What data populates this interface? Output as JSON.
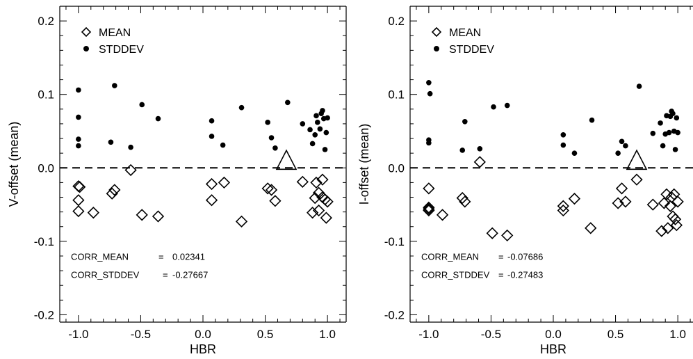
{
  "chart_data": [
    {
      "type": "scatter",
      "xlabel": "HBR",
      "ylabel": "V-offset (mean)",
      "xlim": [
        -1.15,
        1.15
      ],
      "ylim": [
        -0.21,
        0.22
      ],
      "xticks": [
        "-1.0",
        "-0.5",
        "0.0",
        "0.5",
        "1.0"
      ],
      "xtick_values": [
        -1.0,
        -0.5,
        0.0,
        0.5,
        1.0
      ],
      "yticks": [
        "-0.2",
        "-0.1",
        "0.0",
        "0.1",
        "0.2"
      ],
      "ytick_values": [
        -0.2,
        -0.1,
        0.0,
        0.1,
        0.2
      ],
      "legend": [
        {
          "label": "MEAN",
          "marker": "open-diamond"
        },
        {
          "label": "STDDEV",
          "marker": "filled-circle"
        }
      ],
      "legend_position": "top-left",
      "reference_line": {
        "y": 0.0,
        "style": "dashed"
      },
      "annotations": [
        {
          "label": "CORR_MEAN",
          "equals": "=",
          "value": "0.02341"
        },
        {
          "label": "CORR_STDDEV",
          "equals": "=",
          "value": "-0.27667"
        }
      ],
      "triangle_marker": {
        "x": 0.67,
        "y": 0.0
      },
      "series": [
        {
          "name": "MEAN",
          "marker": "open-diamond",
          "points": [
            [
              -1.0,
              -0.025
            ],
            [
              -0.99,
              -0.026
            ],
            [
              -1.0,
              -0.044
            ],
            [
              -1.0,
              -0.059
            ],
            [
              -0.88,
              -0.061
            ],
            [
              -0.73,
              -0.035
            ],
            [
              -0.71,
              -0.03
            ],
            [
              -0.58,
              -0.003
            ],
            [
              -0.49,
              -0.064
            ],
            [
              -0.36,
              -0.066
            ],
            [
              0.07,
              -0.022
            ],
            [
              0.07,
              -0.044
            ],
            [
              0.17,
              -0.02
            ],
            [
              0.31,
              -0.073
            ],
            [
              0.52,
              -0.028
            ],
            [
              0.55,
              -0.03
            ],
            [
              0.58,
              -0.045
            ],
            [
              0.8,
              -0.019
            ],
            [
              0.88,
              -0.061
            ],
            [
              0.9,
              -0.041
            ],
            [
              0.91,
              -0.02
            ],
            [
              0.93,
              -0.058
            ],
            [
              0.93,
              -0.034
            ],
            [
              0.96,
              -0.016
            ],
            [
              0.96,
              -0.04
            ],
            [
              0.98,
              -0.043
            ],
            [
              0.99,
              -0.068
            ],
            [
              1.0,
              -0.046
            ]
          ]
        },
        {
          "name": "STDDEV",
          "marker": "filled-circle",
          "points": [
            [
              -1.0,
              0.106
            ],
            [
              -1.0,
              0.069
            ],
            [
              -1.0,
              0.039
            ],
            [
              -1.0,
              0.03
            ],
            [
              -0.74,
              0.035
            ],
            [
              -0.71,
              0.112
            ],
            [
              -0.58,
              0.028
            ],
            [
              -0.49,
              0.086
            ],
            [
              -0.36,
              0.067
            ],
            [
              0.07,
              0.064
            ],
            [
              0.07,
              0.043
            ],
            [
              0.16,
              0.031
            ],
            [
              0.31,
              0.082
            ],
            [
              0.52,
              0.062
            ],
            [
              0.55,
              0.041
            ],
            [
              0.58,
              0.027
            ],
            [
              0.68,
              0.089
            ],
            [
              0.8,
              0.06
            ],
            [
              0.86,
              0.052
            ],
            [
              0.88,
              0.033
            ],
            [
              0.9,
              0.045
            ],
            [
              0.91,
              0.071
            ],
            [
              0.92,
              0.062
            ],
            [
              0.94,
              0.053
            ],
            [
              0.95,
              0.074
            ],
            [
              0.96,
              0.078
            ],
            [
              0.97,
              0.067
            ],
            [
              0.98,
              0.025
            ],
            [
              0.99,
              0.048
            ],
            [
              1.0,
              0.068
            ]
          ]
        }
      ]
    },
    {
      "type": "scatter",
      "xlabel": "HBR",
      "ylabel": "I-offset (mean)",
      "xlim": [
        -1.15,
        1.15
      ],
      "ylim": [
        -0.21,
        0.22
      ],
      "xticks": [
        "-1.0",
        "-0.5",
        "0.0",
        "0.5",
        "1.0"
      ],
      "xtick_values": [
        -1.0,
        -0.5,
        0.0,
        0.5,
        1.0
      ],
      "yticks": [
        "-0.2",
        "-0.1",
        "0.0",
        "0.1",
        "0.2"
      ],
      "ytick_values": [
        -0.2,
        -0.1,
        0.0,
        0.1,
        0.2
      ],
      "legend": [
        {
          "label": "MEAN",
          "marker": "open-diamond"
        },
        {
          "label": "STDDEV",
          "marker": "filled-circle"
        }
      ],
      "legend_position": "top-left",
      "reference_line": {
        "y": 0.0,
        "style": "dashed"
      },
      "annotations": [
        {
          "label": "CORR_MEAN",
          "equals": "=",
          "value": "-0.07686"
        },
        {
          "label": "CORR_STDDEV",
          "equals": "=",
          "value": "-0.27483"
        }
      ],
      "triangle_marker": {
        "x": 0.67,
        "y": 0.0
      },
      "series": [
        {
          "name": "MEAN",
          "marker": "open-diamond",
          "points": [
            [
              -1.0,
              -0.028
            ],
            [
              -1.0,
              -0.054
            ],
            [
              -1.0,
              -0.056
            ],
            [
              -1.0,
              -0.058
            ],
            [
              -0.89,
              -0.064
            ],
            [
              -0.73,
              -0.041
            ],
            [
              -0.71,
              -0.046
            ],
            [
              -0.59,
              0.008
            ],
            [
              -0.49,
              -0.089
            ],
            [
              -0.37,
              -0.092
            ],
            [
              0.08,
              -0.052
            ],
            [
              0.08,
              -0.058
            ],
            [
              0.17,
              -0.042
            ],
            [
              0.3,
              -0.082
            ],
            [
              0.52,
              -0.048
            ],
            [
              0.55,
              -0.028
            ],
            [
              0.58,
              -0.046
            ],
            [
              0.67,
              -0.016
            ],
            [
              0.8,
              -0.05
            ],
            [
              0.87,
              -0.086
            ],
            [
              0.89,
              -0.048
            ],
            [
              0.91,
              -0.036
            ],
            [
              0.92,
              -0.082
            ],
            [
              0.94,
              -0.052
            ],
            [
              0.95,
              -0.04
            ],
            [
              0.96,
              -0.066
            ],
            [
              0.97,
              -0.036
            ],
            [
              0.98,
              -0.07
            ],
            [
              0.99,
              -0.078
            ],
            [
              1.0,
              -0.046
            ]
          ]
        },
        {
          "name": "STDDEV",
          "marker": "filled-circle",
          "points": [
            [
              -1.0,
              0.116
            ],
            [
              -0.99,
              0.101
            ],
            [
              -1.0,
              0.038
            ],
            [
              -1.0,
              0.034
            ],
            [
              -0.73,
              0.024
            ],
            [
              -0.71,
              0.063
            ],
            [
              -0.59,
              0.026
            ],
            [
              -0.48,
              0.083
            ],
            [
              -0.37,
              0.085
            ],
            [
              0.08,
              0.045
            ],
            [
              0.08,
              0.031
            ],
            [
              0.17,
              0.02
            ],
            [
              0.31,
              0.065
            ],
            [
              0.52,
              0.02
            ],
            [
              0.55,
              0.036
            ],
            [
              0.58,
              0.03
            ],
            [
              0.69,
              0.111
            ],
            [
              0.8,
              0.047
            ],
            [
              0.86,
              0.061
            ],
            [
              0.88,
              0.03
            ],
            [
              0.9,
              0.046
            ],
            [
              0.91,
              0.071
            ],
            [
              0.93,
              0.048
            ],
            [
              0.94,
              0.07
            ],
            [
              0.95,
              0.077
            ],
            [
              0.96,
              0.074
            ],
            [
              0.97,
              0.05
            ],
            [
              0.98,
              0.025
            ],
            [
              0.99,
              0.068
            ],
            [
              1.0,
              0.048
            ]
          ]
        }
      ]
    }
  ]
}
